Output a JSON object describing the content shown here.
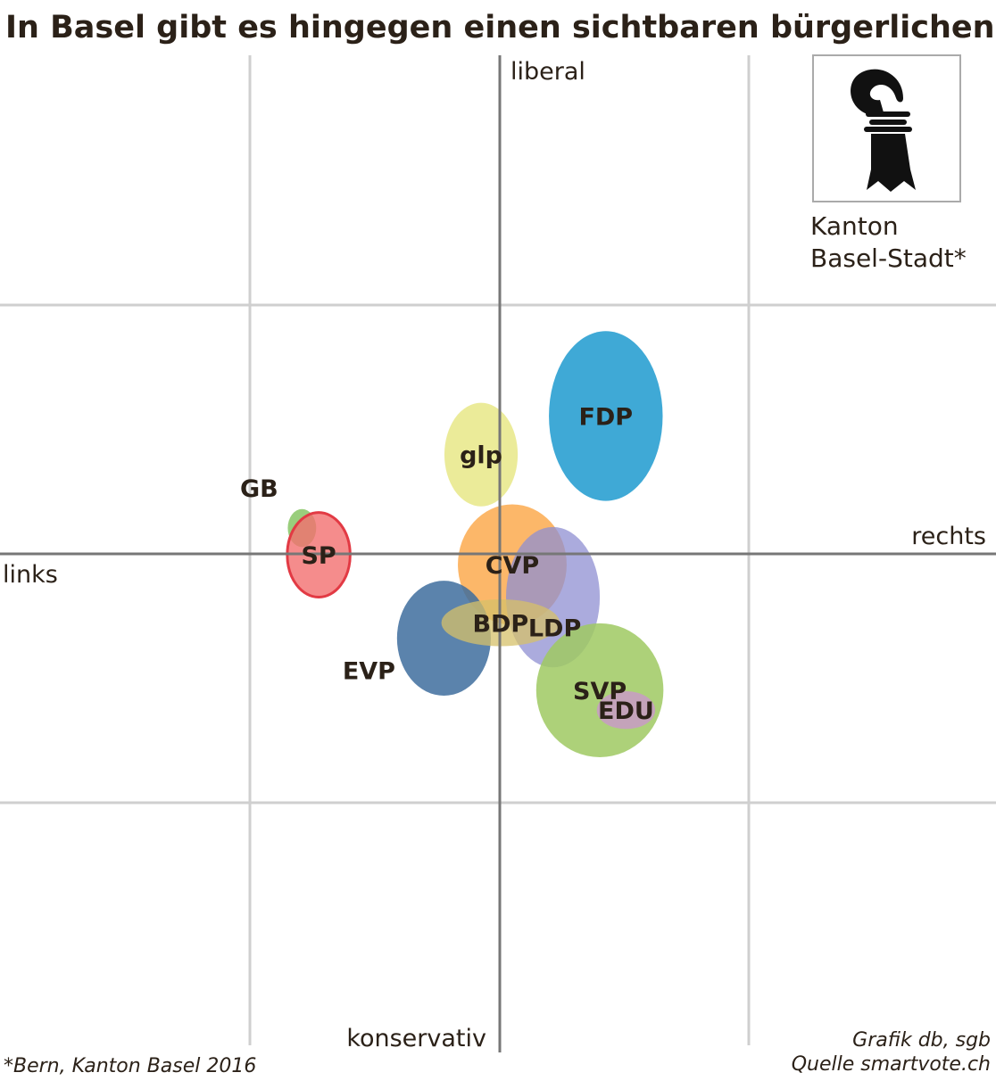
{
  "title": "In Basel gibt es hingegen einen sichtbaren bürgerlichen Block",
  "axes": {
    "top": "liberal",
    "bottom": "konservativ",
    "left": "links",
    "right": "rechts"
  },
  "emblem": {
    "icon": "basel-crozier-icon",
    "line1": "Kanton",
    "line2": "Basel-Stadt*"
  },
  "footnote": "*Bern, Kanton Basel 2016",
  "credit": "Grafik db, sgb",
  "source": "Quelle smartvote.ch",
  "chart_data": {
    "type": "scatter",
    "title": "In Basel gibt es hingegen einen sichtbaren bürgerlichen Block",
    "xlabel_left": "links",
    "xlabel_right": "rechts",
    "ylabel_top": "liberal",
    "ylabel_bottom": "konservativ",
    "xlim": [
      -100,
      100
    ],
    "ylim": [
      -100,
      100
    ],
    "grid": true,
    "series": [
      {
        "name": "GB",
        "x": -79.3,
        "y": 10.4,
        "rx": 5.7,
        "ry": 7.6,
        "color": "#8ec96e",
        "opacity": 0.9
      },
      {
        "name": "glp",
        "x": -7.5,
        "y": 39.9,
        "rx": 14.7,
        "ry": 20.8,
        "color": "#e8e887",
        "opacity": 0.85
      },
      {
        "name": "FDP",
        "x": 42.5,
        "y": 55.4,
        "rx": 22.8,
        "ry": 34.1,
        "color": "#2aa0d1",
        "opacity": 0.9
      },
      {
        "name": "CVP",
        "x": 5.0,
        "y": -4.3,
        "rx": 21.8,
        "ry": 24.2,
        "color": "#fba543",
        "opacity": 0.8
      },
      {
        "name": "EVP",
        "x": -22.4,
        "y": -33.9,
        "rx": 18.8,
        "ry": 23.1,
        "color": "#3e6d9d",
        "opacity": 0.85
      },
      {
        "name": "LDP",
        "x": 21.3,
        "y": -17.4,
        "rx": 18.8,
        "ry": 28.2,
        "color": "#8f8fd1",
        "opacity": 0.75
      },
      {
        "name": "BDP",
        "x": 0.3,
        "y": -27.7,
        "rx": 23.7,
        "ry": 9.4,
        "color": "#d6c06a",
        "opacity": 0.75
      },
      {
        "name": "SP",
        "x": -72.6,
        "y": -0.4,
        "rx": 12.6,
        "ry": 17.0,
        "color": "#f36f6f",
        "opacity": 0.8
      },
      {
        "name": "SVP",
        "x": 40.1,
        "y": -54.8,
        "rx": 25.5,
        "ry": 26.9,
        "color": "#9fc962",
        "opacity": 0.85
      },
      {
        "name": "EDU",
        "x": 50.6,
        "y": -62.8,
        "rx": 11.7,
        "ry": 7.6,
        "color": "#c89bc5",
        "opacity": 0.85
      }
    ]
  }
}
